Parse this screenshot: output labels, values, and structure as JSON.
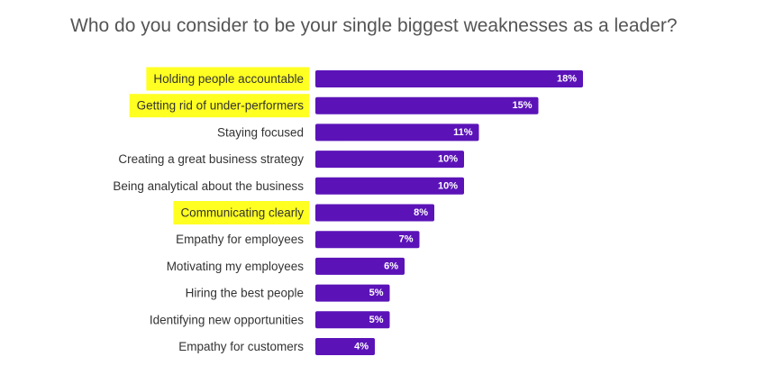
{
  "chart_data": {
    "type": "bar",
    "orientation": "horizontal",
    "title": "Who do you consider to be your single biggest weaknesses as a leader?",
    "categories": [
      "Holding people accountable",
      "Getting rid of under-performers",
      "Staying focused",
      "Creating a great business strategy",
      "Being analytical about the business",
      "Communicating clearly",
      "Empathy for employees",
      "Motivating my employees",
      "Hiring the best people",
      "Identifying new opportunities",
      "Empathy for customers"
    ],
    "values": [
      18,
      15,
      11,
      10,
      10,
      8,
      7,
      6,
      5,
      5,
      4
    ],
    "value_labels": [
      "18%",
      "15%",
      "11%",
      "10%",
      "10%",
      "8%",
      "7%",
      "6%",
      "5%",
      "5%",
      "4%"
    ],
    "highlighted": [
      true,
      true,
      false,
      false,
      false,
      true,
      false,
      false,
      false,
      false,
      false
    ],
    "unit": "%",
    "xlim": [
      0,
      18
    ],
    "grid": false,
    "legend": "none",
    "colors": {
      "bar": "#5b13b8",
      "highlight": "#ffff22",
      "label_text": "#333333",
      "value_text": "#ffffff",
      "title_text": "#555555"
    }
  }
}
